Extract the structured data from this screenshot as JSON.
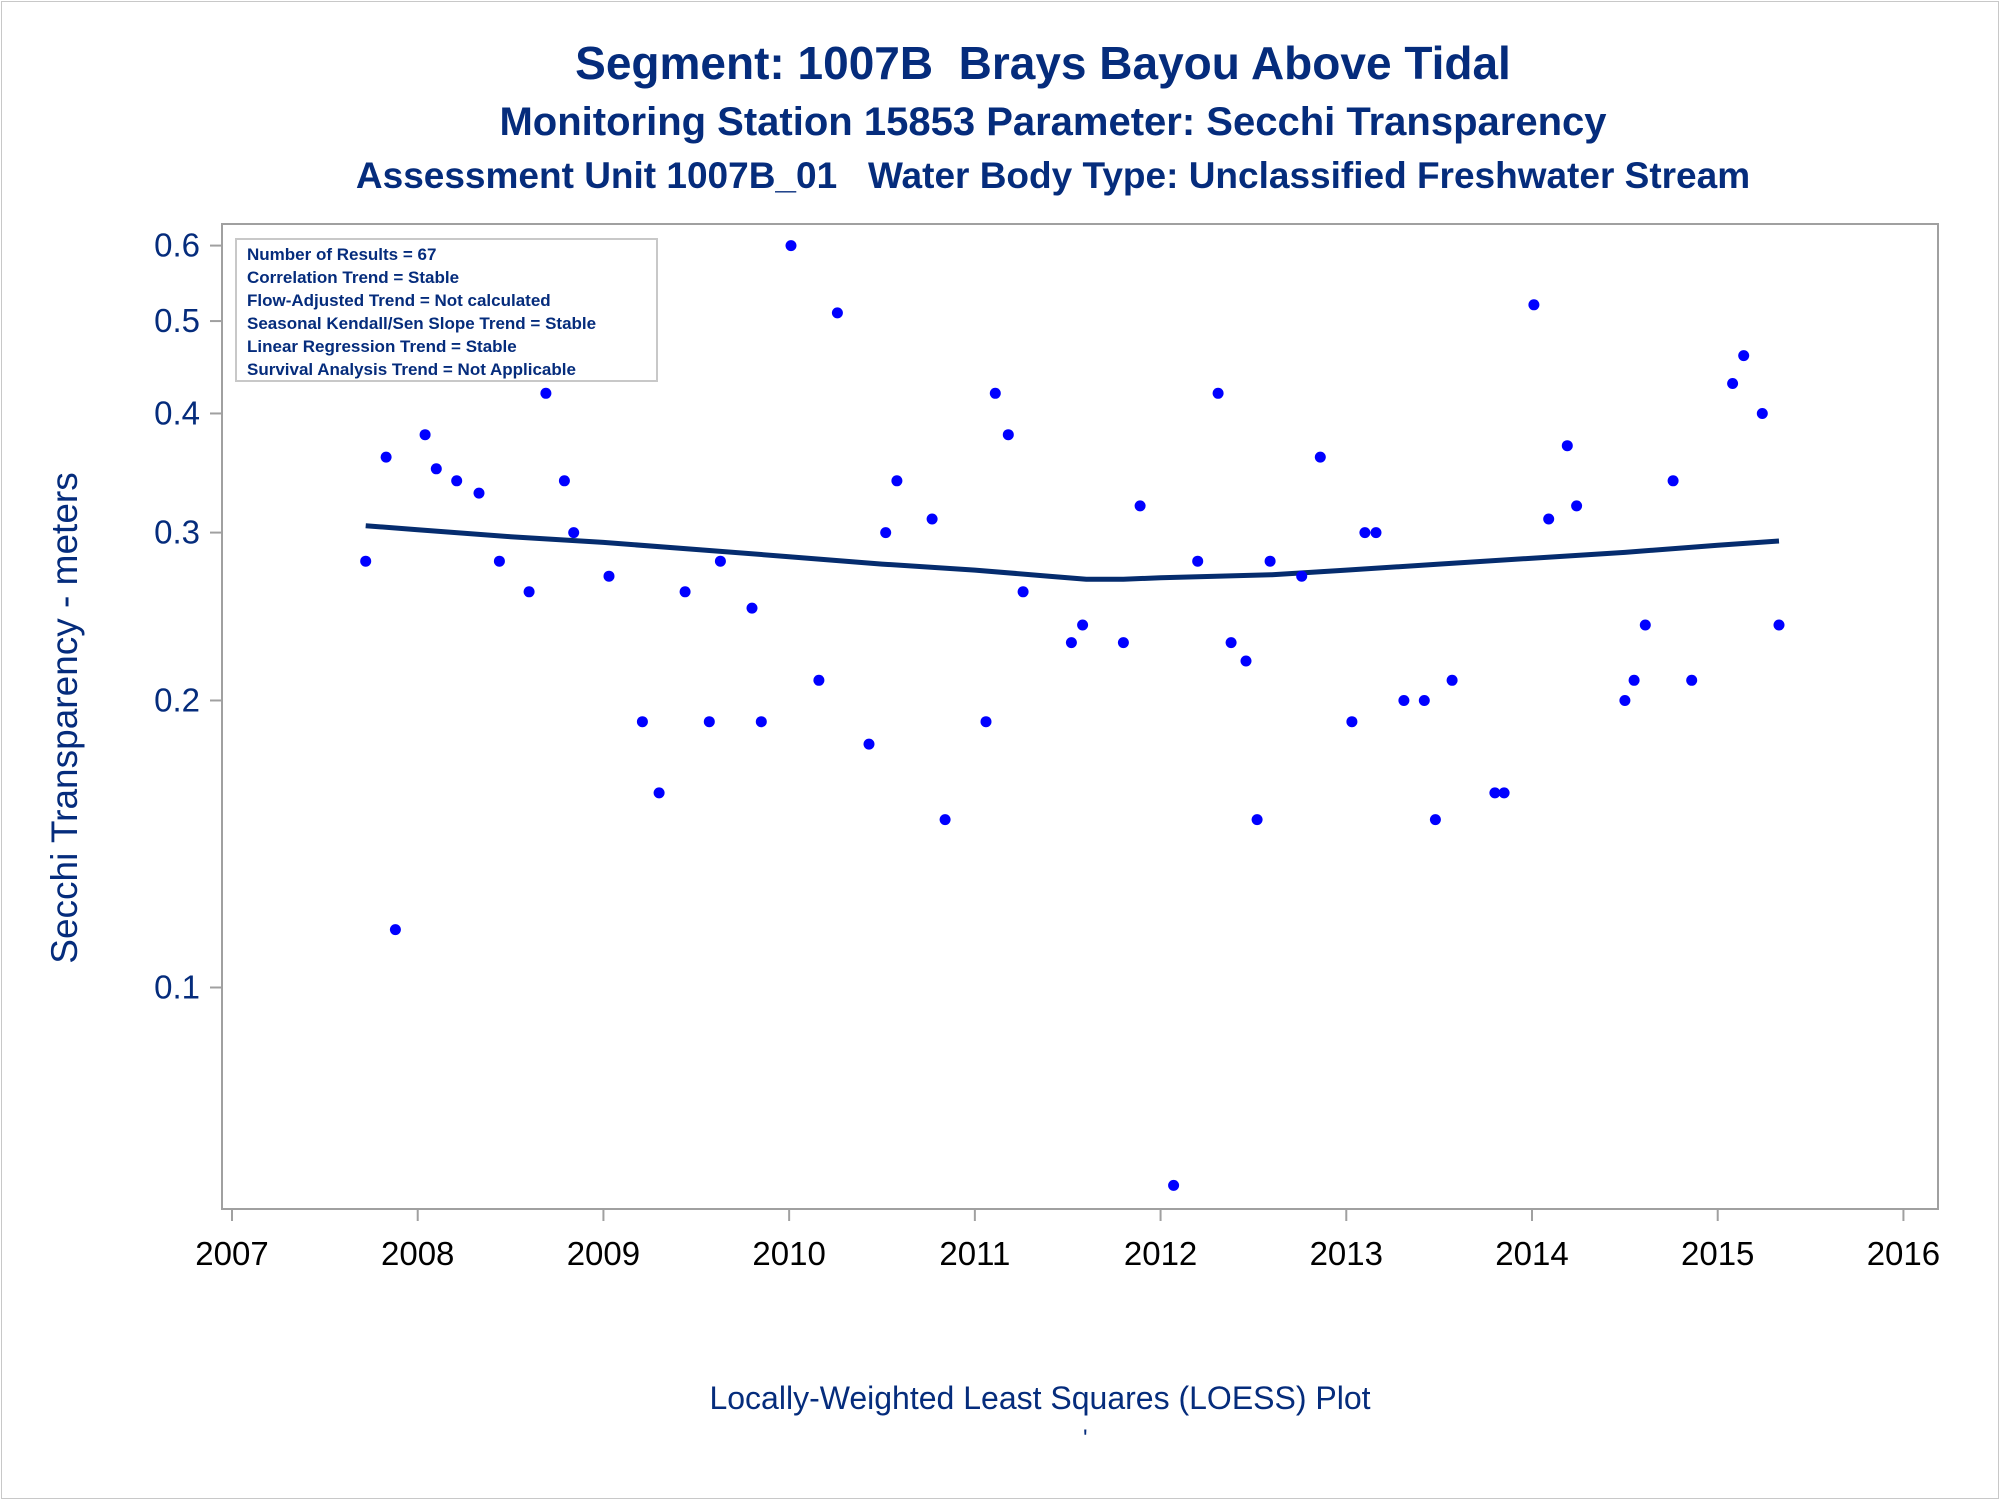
{
  "titles": {
    "line1": "Segment: 1007B  Brays Bayou Above Tidal",
    "line2": "Monitoring Station 15853 Parameter: Secchi Transparency",
    "line3": "Assessment Unit 1007B_01   Water Body Type: Unclassified Freshwater Stream"
  },
  "footer": {
    "caption": "Locally-Weighted Least Squares (LOESS) Plot",
    "mark": "'"
  },
  "stats_box": {
    "lines": [
      "Number of Results = 67",
      "Correlation Trend = Stable",
      "Flow-Adjusted Trend = Not calculated",
      "Seasonal Kendall/Sen Slope Trend = Stable",
      "Linear Regression Trend = Stable",
      "Survival Analysis Trend = Not Applicable"
    ]
  },
  "colors": {
    "text": "#052c7c",
    "points": "#0000ff",
    "loess": "#052c6e",
    "axis": "#a0a0a0"
  },
  "chart_data": {
    "type": "scatter",
    "ylabel": "Secchi Transparency - meters",
    "xlabel": "",
    "y_scale": "log",
    "ylim": [
      0.06,
      0.62
    ],
    "xlim": [
      2007.0,
      2016.1
    ],
    "y_ticks": [
      0.1,
      0.2,
      0.3,
      0.4,
      0.5,
      0.6
    ],
    "x_ticks": [
      2007,
      2008,
      2009,
      2010,
      2011,
      2012,
      2013,
      2014,
      2015,
      2016
    ],
    "grid": false,
    "series": [
      {
        "kind": "points",
        "x": [
          2007.72,
          2007.83,
          2007.88,
          2008.04,
          2008.1,
          2008.21,
          2008.33,
          2008.44,
          2008.6,
          2008.69,
          2008.79,
          2008.84,
          2009.03,
          2009.21,
          2009.3,
          2009.44,
          2009.57,
          2009.63,
          2009.8,
          2009.85,
          2010.01,
          2010.16,
          2010.26,
          2010.43,
          2010.52,
          2010.58,
          2010.77,
          2010.84,
          2011.06,
          2011.11,
          2011.18,
          2011.26,
          2011.52,
          2011.58,
          2011.8,
          2011.89,
          2012.07,
          2012.2,
          2012.31,
          2012.38,
          2012.46,
          2012.52,
          2012.59,
          2012.76,
          2012.86,
          2013.03,
          2013.1,
          2013.16,
          2013.31,
          2013.42,
          2013.48,
          2013.57,
          2013.8,
          2013.85,
          2014.01,
          2014.09,
          2014.19,
          2014.24,
          2014.5,
          2014.55,
          2014.61,
          2014.76,
          2014.86,
          2015.08,
          2015.14,
          2015.24,
          2015.33
        ],
        "y": [
          0.28,
          0.36,
          0.115,
          0.38,
          0.35,
          0.34,
          0.33,
          0.28,
          0.26,
          0.42,
          0.34,
          0.3,
          0.27,
          0.19,
          0.16,
          0.26,
          0.19,
          0.28,
          0.25,
          0.19,
          0.6,
          0.21,
          0.51,
          0.18,
          0.3,
          0.34,
          0.31,
          0.15,
          0.19,
          0.42,
          0.38,
          0.26,
          0.23,
          0.24,
          0.23,
          0.32,
          0.062,
          0.28,
          0.42,
          0.23,
          0.22,
          0.15,
          0.28,
          0.27,
          0.36,
          0.19,
          0.3,
          0.3,
          0.2,
          0.2,
          0.15,
          0.21,
          0.16,
          0.16,
          0.52,
          0.31,
          0.37,
          0.32,
          0.2,
          0.21,
          0.24,
          0.34,
          0.21,
          0.43,
          0.46,
          0.4,
          0.24
        ]
      },
      {
        "kind": "loess-line",
        "x": [
          2007.72,
          2008.0,
          2008.5,
          2009.0,
          2009.5,
          2010.0,
          2010.5,
          2011.0,
          2011.4,
          2011.6,
          2011.8,
          2012.0,
          2012.3,
          2012.6,
          2013.0,
          2013.5,
          2014.0,
          2014.5,
          2015.0,
          2015.33
        ],
        "y": [
          0.305,
          0.302,
          0.297,
          0.293,
          0.288,
          0.283,
          0.278,
          0.274,
          0.27,
          0.268,
          0.268,
          0.269,
          0.27,
          0.271,
          0.274,
          0.278,
          0.282,
          0.286,
          0.291,
          0.294
        ]
      }
    ]
  }
}
